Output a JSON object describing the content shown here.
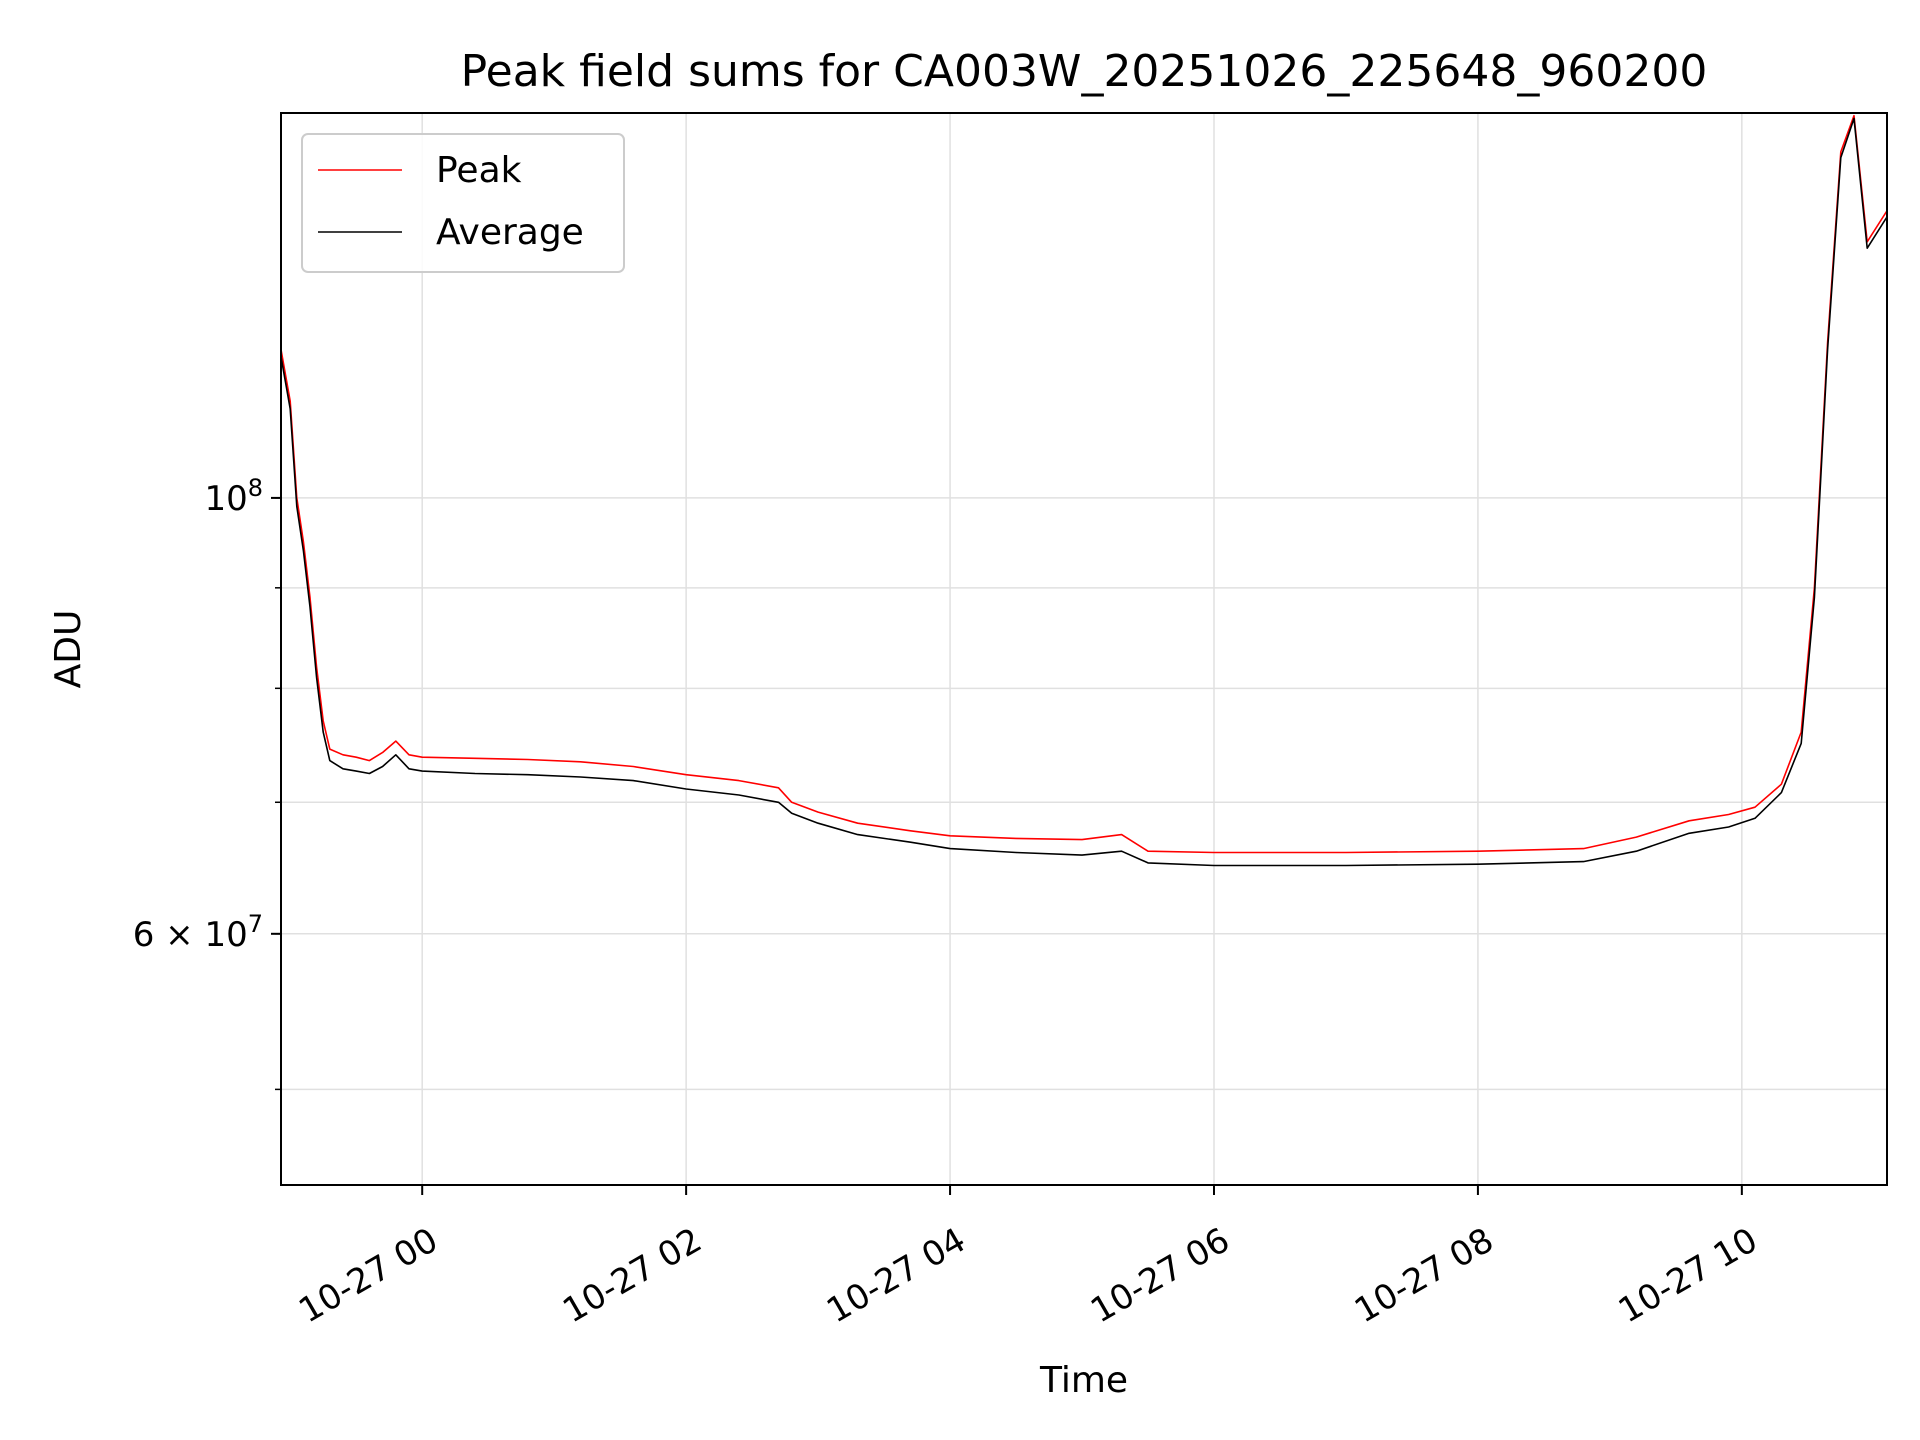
{
  "chart_data": {
    "type": "line",
    "title": "Peak field sums for CA003W_20251026_225648_960200",
    "xlabel": "Time",
    "ylabel": "ADU",
    "yscale": "log",
    "grid": true,
    "legend_location": "upper-left",
    "xlim_hours": [
      -1.07,
      11.1
    ],
    "ylim": [
      44700000,
      157000000
    ],
    "x_ticks": [
      {
        "hour": 0,
        "label": "10-27 00"
      },
      {
        "hour": 2,
        "label": "10-27 02"
      },
      {
        "hour": 4,
        "label": "10-27 04"
      },
      {
        "hour": 6,
        "label": "10-27 06"
      },
      {
        "hour": 8,
        "label": "10-27 08"
      },
      {
        "hour": 10,
        "label": "10-27 10"
      }
    ],
    "y_major_ticks": [
      {
        "value": 100000000,
        "base": "10",
        "exp": "8"
      },
      {
        "value": 60000000,
        "mantissa": "6",
        "base": "10",
        "exp": "7"
      }
    ],
    "y_grid_values": [
      50000000,
      60000000,
      70000000,
      80000000,
      90000000,
      100000000
    ],
    "series": [
      {
        "name": "Peak",
        "color": "#ff0000",
        "points": [
          [
            -1.07,
            119000000
          ],
          [
            -1.0,
            112000000
          ],
          [
            -0.95,
            100000000
          ],
          [
            -0.9,
            95000000
          ],
          [
            -0.85,
            89000000
          ],
          [
            -0.8,
            82000000
          ],
          [
            -0.75,
            77000000
          ],
          [
            -0.7,
            74500000
          ],
          [
            -0.6,
            74000000
          ],
          [
            -0.5,
            73800000
          ],
          [
            -0.4,
            73500000
          ],
          [
            -0.3,
            74200000
          ],
          [
            -0.2,
            75200000
          ],
          [
            -0.1,
            74000000
          ],
          [
            0.0,
            73800000
          ],
          [
            0.4,
            73700000
          ],
          [
            0.8,
            73600000
          ],
          [
            1.2,
            73400000
          ],
          [
            1.6,
            73000000
          ],
          [
            2.0,
            72300000
          ],
          [
            2.4,
            71800000
          ],
          [
            2.7,
            71200000
          ],
          [
            2.8,
            70000000
          ],
          [
            3.0,
            69200000
          ],
          [
            3.3,
            68300000
          ],
          [
            3.7,
            67700000
          ],
          [
            4.0,
            67300000
          ],
          [
            4.5,
            67100000
          ],
          [
            5.0,
            67000000
          ],
          [
            5.3,
            67400000
          ],
          [
            5.5,
            66100000
          ],
          [
            6.0,
            66000000
          ],
          [
            7.0,
            66000000
          ],
          [
            8.0,
            66100000
          ],
          [
            8.8,
            66300000
          ],
          [
            9.2,
            67200000
          ],
          [
            9.6,
            68500000
          ],
          [
            9.9,
            69000000
          ],
          [
            10.1,
            69600000
          ],
          [
            10.3,
            71500000
          ],
          [
            10.45,
            76000000
          ],
          [
            10.55,
            90000000
          ],
          [
            10.65,
            120000000
          ],
          [
            10.75,
            150000000
          ],
          [
            10.85,
            156500000
          ],
          [
            10.95,
            135000000
          ],
          [
            11.1,
            140000000
          ]
        ]
      },
      {
        "name": "Average",
        "color": "#000000",
        "points": [
          [
            -1.07,
            118000000
          ],
          [
            -1.0,
            111000000
          ],
          [
            -0.95,
            99000000
          ],
          [
            -0.9,
            94000000
          ],
          [
            -0.85,
            88000000
          ],
          [
            -0.8,
            81000000
          ],
          [
            -0.75,
            76000000
          ],
          [
            -0.7,
            73500000
          ],
          [
            -0.6,
            72800000
          ],
          [
            -0.5,
            72600000
          ],
          [
            -0.4,
            72400000
          ],
          [
            -0.3,
            73000000
          ],
          [
            -0.2,
            74000000
          ],
          [
            -0.1,
            72800000
          ],
          [
            0.0,
            72600000
          ],
          [
            0.4,
            72400000
          ],
          [
            0.8,
            72300000
          ],
          [
            1.2,
            72100000
          ],
          [
            1.6,
            71800000
          ],
          [
            2.0,
            71100000
          ],
          [
            2.4,
            70600000
          ],
          [
            2.7,
            70000000
          ],
          [
            2.8,
            69100000
          ],
          [
            3.0,
            68300000
          ],
          [
            3.3,
            67400000
          ],
          [
            3.7,
            66800000
          ],
          [
            4.0,
            66300000
          ],
          [
            4.5,
            66000000
          ],
          [
            5.0,
            65800000
          ],
          [
            5.3,
            66100000
          ],
          [
            5.5,
            65200000
          ],
          [
            6.0,
            65000000
          ],
          [
            7.0,
            65000000
          ],
          [
            8.0,
            65100000
          ],
          [
            8.8,
            65300000
          ],
          [
            9.2,
            66100000
          ],
          [
            9.6,
            67500000
          ],
          [
            9.9,
            68000000
          ],
          [
            10.1,
            68700000
          ],
          [
            10.3,
            70800000
          ],
          [
            10.45,
            75000000
          ],
          [
            10.55,
            89000000
          ],
          [
            10.65,
            119000000
          ],
          [
            10.75,
            149000000
          ],
          [
            10.85,
            156000000
          ],
          [
            10.95,
            134000000
          ],
          [
            11.1,
            139000000
          ]
        ]
      }
    ]
  }
}
